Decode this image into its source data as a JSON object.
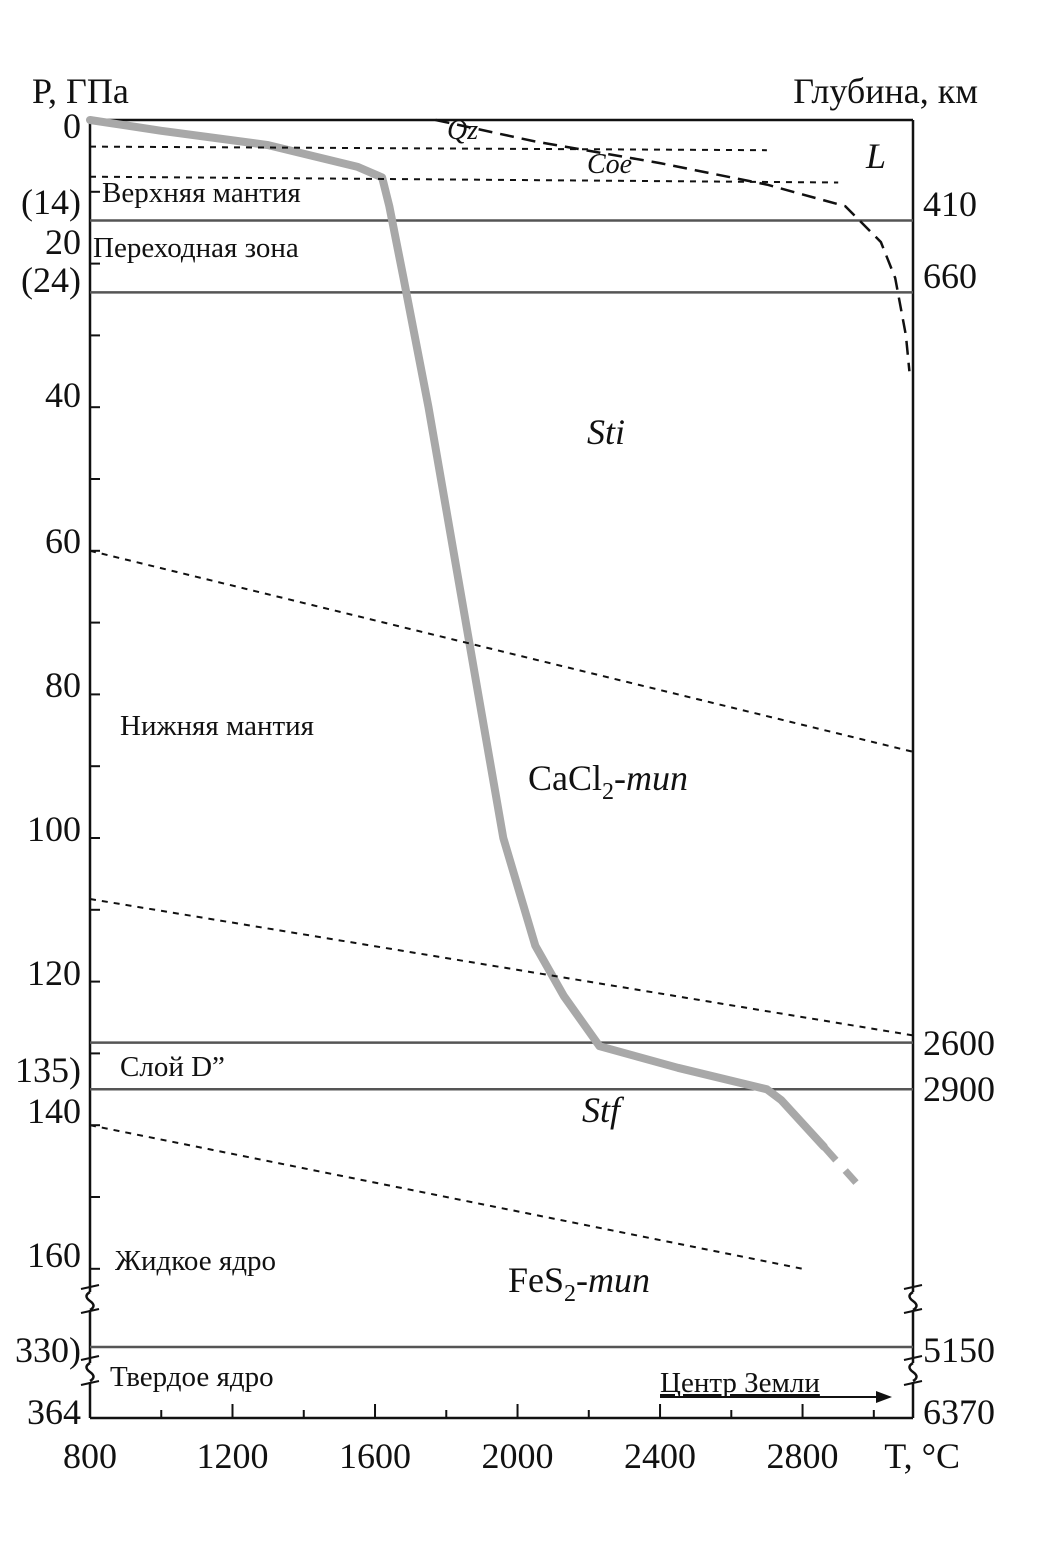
{
  "chart_data": {
    "type": "line",
    "y_axis_left_label": "P, ГПа",
    "y_axis_right_label": "Глубина, км",
    "x_axis_label": "T, °C",
    "x_ticks": [
      "800",
      "1200",
      "1600",
      "2000",
      "2400",
      "2800"
    ],
    "x_tick_values": [
      800,
      1200,
      1600,
      2000,
      2400,
      2800
    ],
    "xlim": [
      800,
      3110
    ],
    "left_ticks": [
      {
        "label": "0",
        "p": 0
      },
      {
        "label": "(14)",
        "p": 14
      },
      {
        "label": "20",
        "p": 20
      },
      {
        "label": "(24)",
        "p": 24
      },
      {
        "label": "40",
        "p": 40
      },
      {
        "label": "60",
        "p": 60
      },
      {
        "label": "80",
        "p": 80
      },
      {
        "label": "100",
        "p": 100
      },
      {
        "label": "120",
        "p": 120
      },
      {
        "label": "135)",
        "p": 135
      },
      {
        "label": "140",
        "p": 140
      },
      {
        "label": "160",
        "p": 160
      },
      {
        "label": "330)",
        "p": 330
      },
      {
        "label": "364",
        "p": 364
      }
    ],
    "right_ticks": [
      {
        "label": "410",
        "p": 14
      },
      {
        "label": "660",
        "p": 24
      },
      {
        "label": "2600",
        "p": 128.5
      },
      {
        "label": "2900",
        "p": 135
      },
      {
        "label": "5150",
        "p": 330
      },
      {
        "label": "6370",
        "p": 364
      }
    ],
    "zones": [
      {
        "label": "Верхняя мантия"
      },
      {
        "label": "Переходная зона"
      },
      {
        "label": "Нижняя мантия"
      },
      {
        "label": "Слой D”"
      },
      {
        "label": "Жидкое ядро"
      },
      {
        "label": "Твердое ядро"
      }
    ],
    "phases": {
      "qz": "Qz",
      "coe": "Coe",
      "l": "L",
      "sti": "Sti",
      "cacl2_prefix": "CaCl",
      "cacl2_sub": "2",
      "cacl2_suffix": "-тип",
      "stf": "Stf",
      "fes2_prefix": "FeS",
      "fes2_sub": "2",
      "fes2_suffix": "-тип"
    },
    "center_label": "Центр Земли",
    "series": [
      {
        "style": "geotherm",
        "points": [
          [
            800,
            0
          ],
          [
            1000,
            1.5
          ],
          [
            1300,
            3.5
          ],
          [
            1550,
            6.5
          ],
          [
            1620,
            8
          ],
          [
            1640,
            12
          ],
          [
            1660,
            17
          ],
          [
            1680,
            22
          ],
          [
            1750,
            40
          ],
          [
            1820,
            60
          ],
          [
            1890,
            80
          ],
          [
            1960,
            100
          ],
          [
            2050,
            115
          ],
          [
            2130,
            122
          ],
          [
            2230,
            129
          ],
          [
            2450,
            132
          ],
          [
            2700,
            135
          ],
          [
            2740,
            136.5
          ],
          [
            2860,
            143
          ]
        ]
      },
      {
        "style": "geotherm-dashed",
        "points": [
          [
            2860,
            143
          ],
          [
            2950,
            148
          ]
        ]
      },
      {
        "style": "phase-boundary",
        "points": [
          [
            1770,
            0
          ],
          [
            2050,
            3
          ],
          [
            2400,
            6
          ],
          [
            2700,
            9
          ],
          [
            2920,
            12
          ],
          [
            3020,
            17
          ],
          [
            3060,
            22
          ],
          [
            3090,
            30
          ],
          [
            3100,
            35
          ]
        ]
      },
      {
        "style": "phase-boundary-fine",
        "points": [
          [
            800,
            3.7
          ],
          [
            2700,
            4.2
          ]
        ]
      },
      {
        "style": "phase-boundary-fine",
        "points": [
          [
            800,
            7.9
          ],
          [
            2900,
            8.7
          ]
        ]
      },
      {
        "style": "phase-boundary-fine",
        "points": [
          [
            800,
            60
          ],
          [
            3110,
            88
          ]
        ]
      },
      {
        "style": "phase-boundary-fine",
        "points": [
          [
            800,
            108.5
          ],
          [
            3110,
            127.5
          ]
        ]
      },
      {
        "style": "phase-boundary-fine",
        "points": [
          [
            800,
            140
          ],
          [
            2800,
            160
          ]
        ]
      }
    ]
  }
}
